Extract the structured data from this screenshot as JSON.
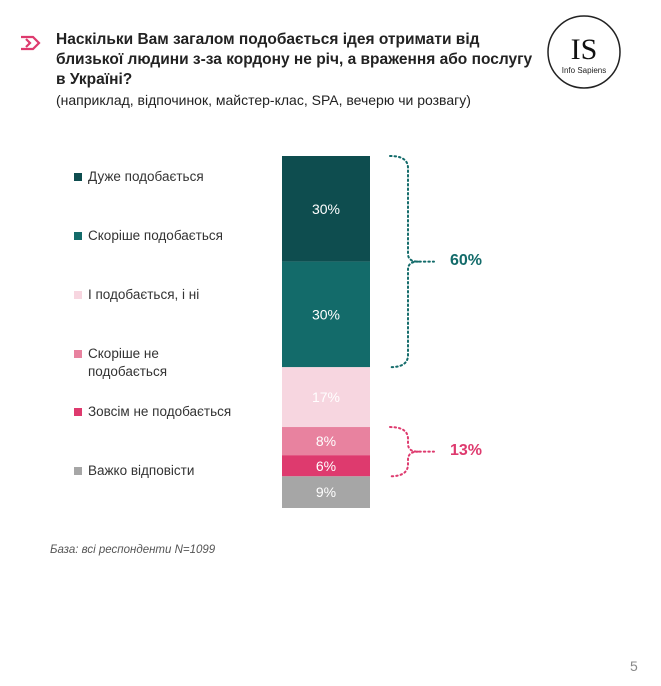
{
  "title": "Наскільки Вам загалом подобається ідея отримати від близької людини з-за кордону не річ, а враження або послугу в Україні?",
  "subtitle": "(наприклад, відпочинок, майстер-клас, SPA, вечерю чи розвагу)",
  "logo": {
    "initials": "IS",
    "name": "Info Sapiens"
  },
  "chart_data": {
    "type": "bar",
    "orientation": "stacked-vertical",
    "categories": [
      "Дуже подобається",
      "Скоріше подобається",
      "І подобається, і ні",
      "Скоріше не\nподобається",
      "Зовсім не подобається",
      "Важко відповісти"
    ],
    "values": [
      30,
      30,
      17,
      8,
      6,
      9
    ],
    "data_labels": [
      "30%",
      "30%",
      "17%",
      "8%",
      "6%",
      "9%"
    ],
    "colors": [
      "#0e4d4f",
      "#136b6a",
      "#f7d6e0",
      "#e8829f",
      "#de3a6e",
      "#a6a6a6"
    ],
    "legend_position": "left",
    "brackets": [
      {
        "label": "60%",
        "color": "#136b6a"
      },
      {
        "label": "13%",
        "color": "#de3a6e"
      }
    ]
  },
  "base_note": "База: всі респонденти N=1099",
  "page_number": "5"
}
